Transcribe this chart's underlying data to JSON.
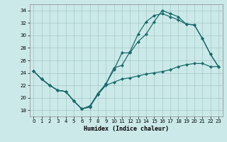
{
  "xlabel": "Humidex (Indice chaleur)",
  "bg_color": "#cce9e9",
  "grid_color": "#aacccc",
  "line_color": "#1a6b6b",
  "xlim": [
    -0.5,
    23.5
  ],
  "ylim": [
    17,
    35
  ],
  "yticks": [
    18,
    20,
    22,
    24,
    26,
    28,
    30,
    32,
    34
  ],
  "xticks": [
    0,
    1,
    2,
    3,
    4,
    5,
    6,
    7,
    8,
    9,
    10,
    11,
    12,
    13,
    14,
    15,
    16,
    17,
    18,
    19,
    20,
    21,
    22,
    23
  ],
  "line1_x": [
    0,
    1,
    2,
    3,
    4,
    5,
    6,
    7,
    8,
    9,
    10,
    11,
    12,
    13,
    14,
    15,
    16,
    17,
    18,
    19,
    20,
    21,
    22,
    23
  ],
  "line1_y": [
    24.3,
    23.0,
    22.0,
    21.2,
    21.0,
    19.5,
    18.2,
    18.5,
    20.5,
    22.0,
    22.5,
    23.0,
    23.2,
    23.5,
    23.8,
    24.0,
    24.2,
    24.5,
    25.0,
    25.3,
    25.5,
    25.5,
    25.0,
    25.0
  ],
  "line2_x": [
    0,
    1,
    2,
    3,
    4,
    5,
    6,
    7,
    8,
    9,
    10,
    11,
    12,
    13,
    14,
    15,
    16,
    17,
    18,
    19,
    20,
    21,
    22,
    23
  ],
  "line2_y": [
    24.3,
    23.0,
    22.0,
    21.2,
    21.0,
    19.5,
    18.2,
    18.7,
    20.5,
    22.2,
    24.5,
    27.2,
    27.2,
    29.0,
    30.2,
    32.2,
    34.0,
    33.5,
    33.0,
    31.8,
    31.7,
    29.5,
    27.0,
    25.0
  ],
  "line3_x": [
    0,
    1,
    2,
    3,
    4,
    5,
    6,
    7,
    8,
    9,
    10,
    11,
    12,
    13,
    14,
    15,
    16,
    17,
    18,
    19,
    20,
    21,
    22,
    23
  ],
  "line3_y": [
    24.3,
    23.0,
    22.0,
    21.2,
    21.0,
    19.5,
    18.2,
    18.6,
    20.7,
    22.2,
    24.8,
    25.2,
    27.4,
    30.2,
    32.2,
    33.2,
    33.5,
    33.0,
    32.5,
    31.8,
    31.7,
    29.5,
    27.0,
    25.0
  ]
}
